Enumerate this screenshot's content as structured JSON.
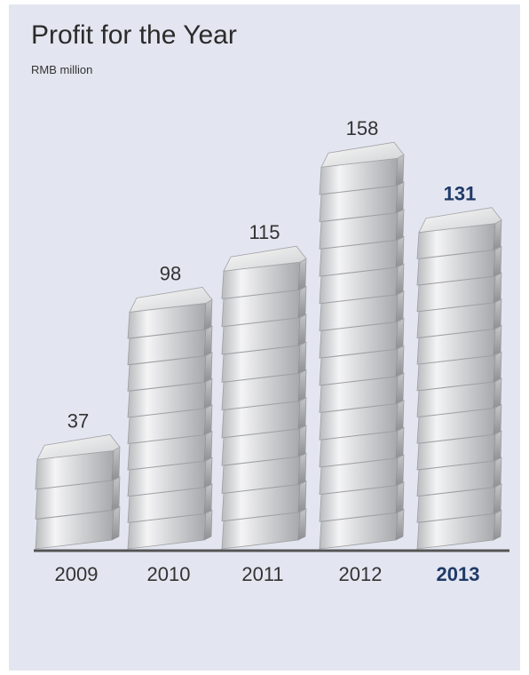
{
  "chart_data": {
    "type": "bar",
    "title": "Profit for the Year",
    "subtitle": "RMB million",
    "categories": [
      "2009",
      "2010",
      "2011",
      "2012",
      "2013"
    ],
    "values": [
      37,
      98,
      115,
      158,
      131
    ],
    "highlight": [
      "2013"
    ],
    "ylim": [
      0,
      170
    ],
    "grid": false,
    "legend": "none",
    "colors": {
      "background": "#e3e6f0",
      "text": "#333333",
      "highlight_text": "#1f3a68",
      "baseline": "#555555",
      "bar_face": "#c9cacc",
      "bar_top": "#eeeeef",
      "bar_side": "#a6a7a9"
    },
    "bar_style": "stacked silver ingots"
  }
}
